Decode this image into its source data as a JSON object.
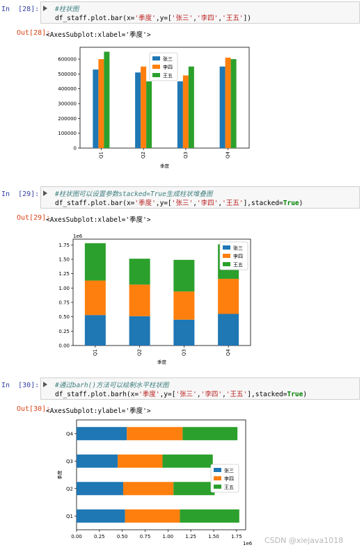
{
  "cells": [
    {
      "in_prompt": "In  [28]:",
      "out_prompt": "Out[28]:",
      "comment": "#柱状图",
      "code": {
        "pre": "df_staff.plot.bar(x=",
        "s1": "'季度'",
        "mid": ",y=[",
        "s2": "'张三'",
        "c1": ",",
        "s3": "'李四'",
        "c2": ",",
        "s4": "'王五'",
        "post": "])"
      },
      "output": "<AxesSubplot:xlabel='季度'>"
    },
    {
      "in_prompt": "In  [29]:",
      "out_prompt": "Out[29]:",
      "comment": "#柱状图可以设置参数stacked=True生成柱状堆叠图",
      "code": {
        "pre": "df_staff.plot.bar(x=",
        "s1": "'季度'",
        "mid": ",y=[",
        "s2": "'张三'",
        "c1": ",",
        "s3": "'李四'",
        "c2": ",",
        "s4": "'王五'",
        "post": "],stacked=",
        "kw": "True",
        "end": ")"
      },
      "output": "<AxesSubplot:xlabel='季度'>"
    },
    {
      "in_prompt": "In  [30]:",
      "out_prompt": "Out[30]:",
      "comment": "#通过barh()方法可以绘制水平柱状图",
      "code": {
        "pre": "df_staff.plot.barh(x=",
        "s1": "'季度'",
        "mid": ",y=[",
        "s2": "'张三'",
        "c1": ",",
        "s3": "'李四'",
        "c2": ",",
        "s4": "'王五'",
        "post": "],stacked=",
        "kw": "True",
        "end": ")"
      },
      "output": "<AxesSubplot:ylabel='季度'>"
    }
  ],
  "chart_data": [
    {
      "type": "bar",
      "categories": [
        "Q1",
        "Q2",
        "Q3",
        "Q4"
      ],
      "xlabel": "季度",
      "ylim": [
        0,
        680000
      ],
      "yticks": [
        "0",
        "100000",
        "200000",
        "300000",
        "400000",
        "500000",
        "600000"
      ],
      "legend_placement": "top-center",
      "series": [
        {
          "name": "张三",
          "values": [
            530000,
            510000,
            450000,
            550000
          ]
        },
        {
          "name": "李四",
          "values": [
            600000,
            550000,
            490000,
            610000
          ]
        },
        {
          "name": "王五",
          "values": [
            650000,
            450000,
            550000,
            600000
          ]
        }
      ]
    },
    {
      "type": "bar",
      "stacked": true,
      "categories": [
        "Q1",
        "Q2",
        "Q3",
        "Q4"
      ],
      "xlabel": "季度",
      "offset_text": "1e6",
      "ylim": [
        0,
        1.85
      ],
      "yticks": [
        "0.00",
        "0.25",
        "0.50",
        "0.75",
        "1.00",
        "1.25",
        "1.50",
        "1.75"
      ],
      "legend_placement": "top-right",
      "series": [
        {
          "name": "张三",
          "values": [
            0.53,
            0.51,
            0.45,
            0.55
          ]
        },
        {
          "name": "李四",
          "values": [
            0.6,
            0.55,
            0.49,
            0.61
          ]
        },
        {
          "name": "王五",
          "values": [
            0.65,
            0.45,
            0.55,
            0.6
          ]
        }
      ]
    },
    {
      "type": "barh",
      "stacked": true,
      "categories": [
        "Q1",
        "Q2",
        "Q3",
        "Q4"
      ],
      "ylabel": "季度",
      "offset_text": "1e6",
      "xlim": [
        0,
        1.85
      ],
      "xticks": [
        "0.00",
        "0.25",
        "0.50",
        "0.75",
        "1.00",
        "1.25",
        "1.50",
        "1.75"
      ],
      "legend_placement": "center-right",
      "series": [
        {
          "name": "张三",
          "values": [
            0.53,
            0.51,
            0.45,
            0.55
          ]
        },
        {
          "name": "李四",
          "values": [
            0.6,
            0.55,
            0.49,
            0.61
          ]
        },
        {
          "name": "王五",
          "values": [
            0.65,
            0.45,
            0.55,
            0.6
          ]
        }
      ]
    }
  ],
  "colors": {
    "s0": "#1f77b4",
    "s1": "#ff7f0e",
    "s2": "#2ca02c"
  },
  "watermark": "CSDN @xiejava1018"
}
